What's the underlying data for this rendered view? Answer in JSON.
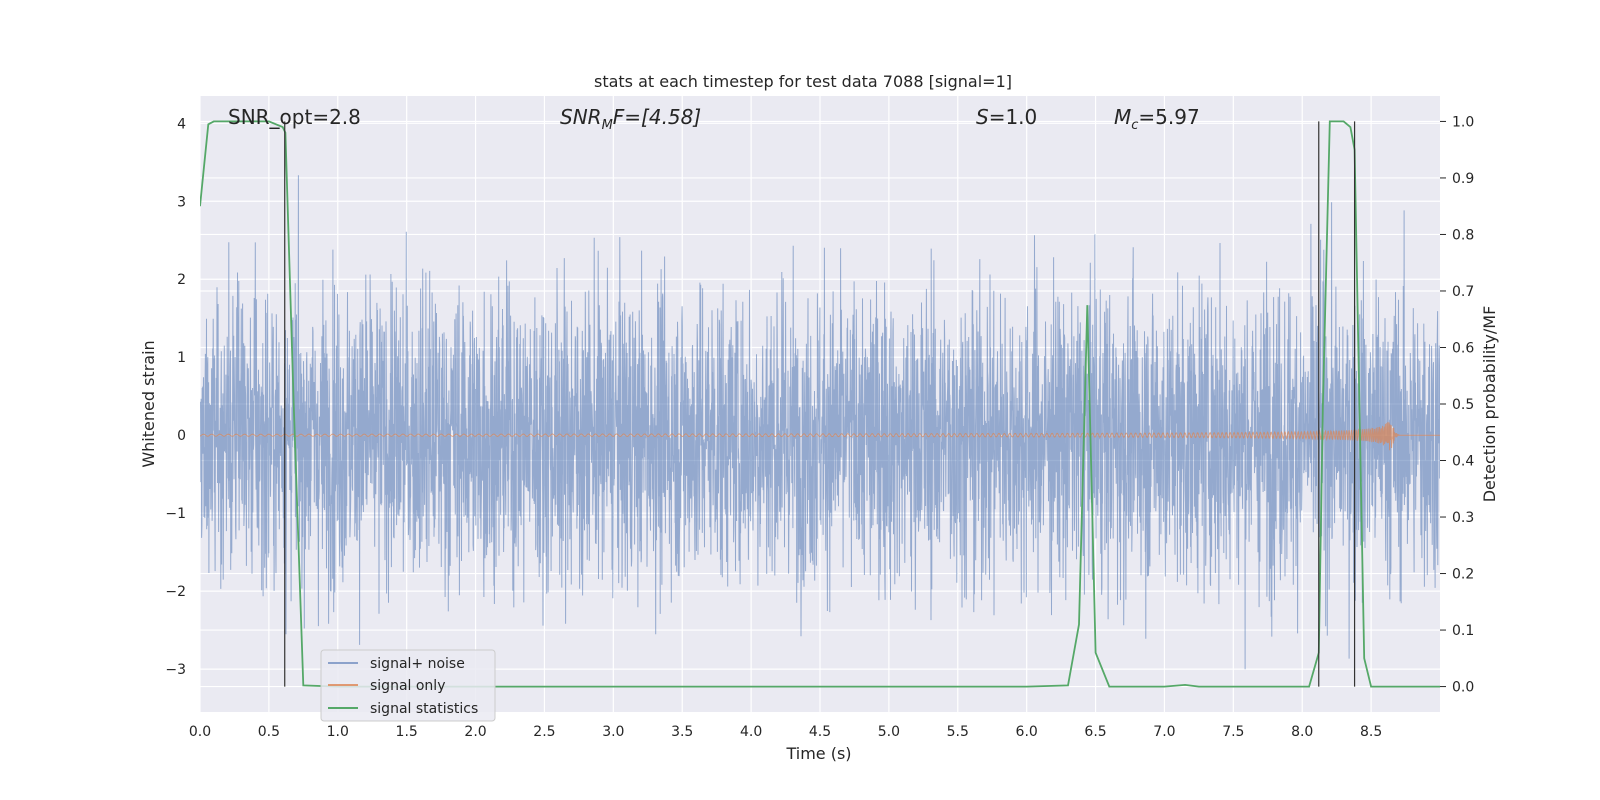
{
  "chart_data": {
    "type": "line",
    "title": "stats at each timestep for test data 7088 [signal=1]",
    "xlabel": "Time (s)",
    "ylabel_left": "Whitened strain",
    "ylabel_right": "Detection probability/MF",
    "xlim": [
      0.0,
      9.0
    ],
    "ylim_left": [
      -3.55,
      4.35
    ],
    "ylim_right": [
      -0.045,
      1.045
    ],
    "xticks": [
      "0.0",
      "0.5",
      "1.0",
      "1.5",
      "2.0",
      "2.5",
      "3.0",
      "3.5",
      "4.0",
      "4.5",
      "5.0",
      "5.5",
      "6.0",
      "6.5",
      "7.0",
      "7.5",
      "8.0",
      "8.5"
    ],
    "yticks_left": [
      "4",
      "3",
      "2",
      "1",
      "0",
      "−1",
      "−2",
      "−3"
    ],
    "yticks_right": [
      "1.0",
      "0.9",
      "0.8",
      "0.7",
      "0.6",
      "0.5",
      "0.4",
      "0.3",
      "0.2",
      "0.1",
      "0.0"
    ],
    "grid": true,
    "legend_position": "lower-left",
    "annotations": {
      "snr_opt": "SNR_opt=2.8",
      "snr_mf_main": "SNR",
      "snr_mf_sub": "M",
      "snr_mf_tail": "F=[4.58]",
      "s_main": "S",
      "s_tail": "=1.0",
      "mc_main": "M",
      "mc_sub": "c",
      "mc_tail": "=5.97"
    },
    "vertical_lines_x": [
      0.615,
      8.12,
      8.38
    ],
    "series": [
      {
        "name": "signal+ noise",
        "color": "#4c72b0",
        "description_values": "whitened noise, roughly within [-3.2, 3.5]",
        "noise_std": 0.95
      },
      {
        "name": "signal only",
        "color": "#dd8452",
        "chirp_end_time": 8.65,
        "chirp_peak_amplitude": 0.22
      },
      {
        "name": "signal statistics",
        "color": "#55a868",
        "x": [
          0.0,
          0.06,
          0.1,
          0.2,
          0.5,
          0.6,
          0.62,
          0.68,
          0.75,
          1.0,
          3.0,
          6.0,
          6.3,
          6.38,
          6.44,
          6.5,
          6.6,
          7.0,
          7.15,
          7.25,
          8.05,
          8.12,
          8.15,
          8.2,
          8.3,
          8.35,
          8.38,
          8.45,
          8.5,
          9.0
        ],
        "y": [
          0.85,
          0.995,
          1.0,
          1.0,
          1.0,
          0.99,
          0.98,
          0.5,
          0.002,
          0.0,
          0.0,
          0.0,
          0.002,
          0.11,
          0.675,
          0.06,
          0.0,
          0.0,
          0.003,
          0.0,
          0.0,
          0.06,
          0.5,
          1.0,
          1.0,
          0.99,
          0.95,
          0.05,
          0.0,
          0.0
        ]
      }
    ]
  }
}
